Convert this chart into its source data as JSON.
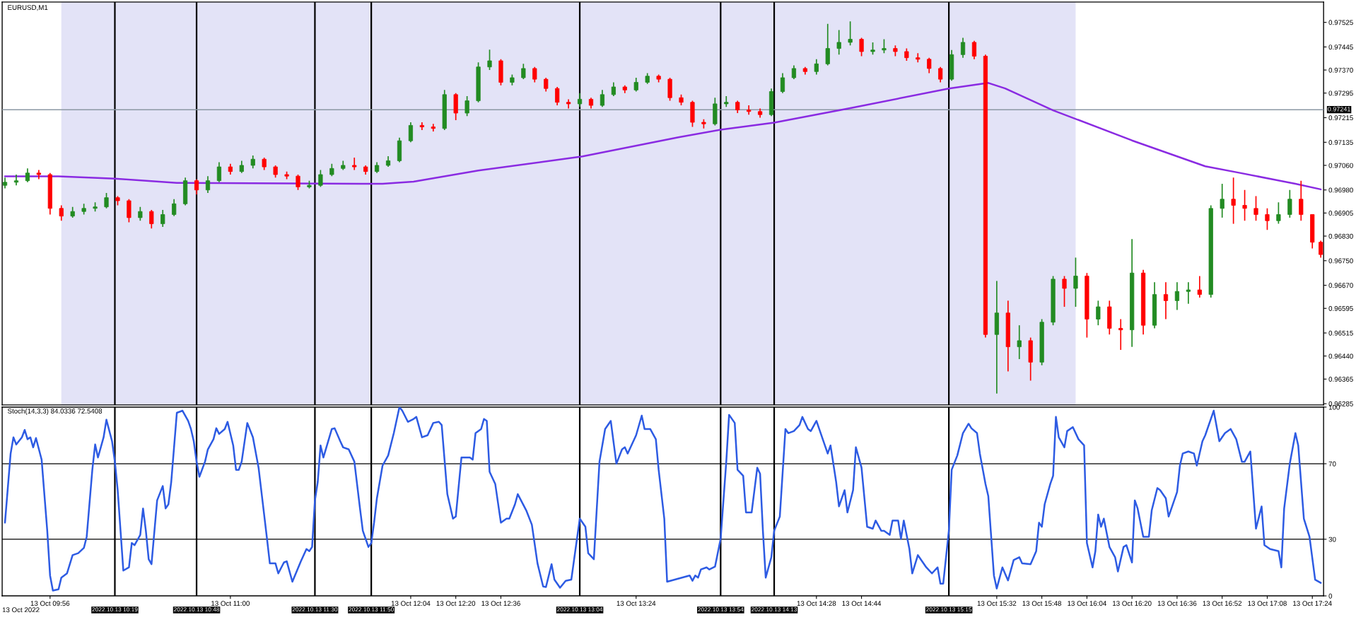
{
  "chart_data": [
    {
      "type": "candlestick",
      "title": "EURUSD,M1",
      "x": [
        "2022-10-13T09:40",
        "2022-10-13T09:44",
        "2022-10-13T09:48",
        "2022-10-13T09:52",
        "2022-10-13T09:56",
        "2022-10-13T10:00",
        "2022-10-13T10:04",
        "2022-10-13T10:08",
        "2022-10-13T10:12",
        "2022-10-13T10:16",
        "2022-10-13T10:20",
        "2022-10-13T10:24",
        "2022-10-13T10:28",
        "2022-10-13T10:32",
        "2022-10-13T10:36",
        "2022-10-13T10:40",
        "2022-10-13T10:44",
        "2022-10-13T10:48",
        "2022-10-13T10:52",
        "2022-10-13T10:56",
        "2022-10-13T11:00",
        "2022-10-13T11:04",
        "2022-10-13T11:08",
        "2022-10-13T11:12",
        "2022-10-13T11:16",
        "2022-10-13T11:20",
        "2022-10-13T11:24",
        "2022-10-13T11:28",
        "2022-10-13T11:32",
        "2022-10-13T11:36",
        "2022-10-13T11:40",
        "2022-10-13T11:44",
        "2022-10-13T11:48",
        "2022-10-13T11:52",
        "2022-10-13T11:56",
        "2022-10-13T12:00",
        "2022-10-13T12:04",
        "2022-10-13T12:08",
        "2022-10-13T12:12",
        "2022-10-13T12:16",
        "2022-10-13T12:20",
        "2022-10-13T12:24",
        "2022-10-13T12:28",
        "2022-10-13T12:32",
        "2022-10-13T12:36",
        "2022-10-13T12:40",
        "2022-10-13T12:44",
        "2022-10-13T12:48",
        "2022-10-13T12:52",
        "2022-10-13T12:56",
        "2022-10-13T13:00",
        "2022-10-13T13:04",
        "2022-10-13T13:08",
        "2022-10-13T13:12",
        "2022-10-13T13:16",
        "2022-10-13T13:20",
        "2022-10-13T13:24",
        "2022-10-13T13:28",
        "2022-10-13T13:32",
        "2022-10-13T13:36",
        "2022-10-13T13:40",
        "2022-10-13T13:44",
        "2022-10-13T13:48",
        "2022-10-13T13:52",
        "2022-10-13T13:56",
        "2022-10-13T14:00",
        "2022-10-13T14:04",
        "2022-10-13T14:08",
        "2022-10-13T14:12",
        "2022-10-13T14:16",
        "2022-10-13T14:20",
        "2022-10-13T14:24",
        "2022-10-13T14:28",
        "2022-10-13T14:32",
        "2022-10-13T14:36",
        "2022-10-13T14:40",
        "2022-10-13T14:44",
        "2022-10-13T14:48",
        "2022-10-13T14:52",
        "2022-10-13T14:56",
        "2022-10-13T15:00",
        "2022-10-13T15:04",
        "2022-10-13T15:08",
        "2022-10-13T15:12",
        "2022-10-13T15:16",
        "2022-10-13T15:20",
        "2022-10-13T15:24",
        "2022-10-13T15:28",
        "2022-10-13T15:32",
        "2022-10-13T15:36",
        "2022-10-13T15:40",
        "2022-10-13T15:44",
        "2022-10-13T15:48",
        "2022-10-13T15:52",
        "2022-10-13T15:56",
        "2022-10-13T16:00",
        "2022-10-13T16:04",
        "2022-10-13T16:08",
        "2022-10-13T16:12",
        "2022-10-13T16:16",
        "2022-10-13T16:20",
        "2022-10-13T16:24",
        "2022-10-13T16:28",
        "2022-10-13T16:32",
        "2022-10-13T16:36",
        "2022-10-13T16:40",
        "2022-10-13T16:44",
        "2022-10-13T16:48",
        "2022-10-13T16:52",
        "2022-10-13T16:56",
        "2022-10-13T17:00",
        "2022-10-13T17:04",
        "2022-10-13T17:08",
        "2022-10-13T17:12",
        "2022-10-13T17:16",
        "2022-10-13T17:20",
        "2022-10-13T17:24",
        "2022-10-13T17:27"
      ],
      "ohlc": [
        [
          0.96995,
          0.9702,
          0.96985,
          0.97005
        ],
        [
          0.97005,
          0.9703,
          0.96995,
          0.9701
        ],
        [
          0.9701,
          0.9705,
          0.97005,
          0.97035
        ],
        [
          0.97035,
          0.97045,
          0.97015,
          0.9703
        ],
        [
          0.9703,
          0.97035,
          0.969,
          0.9692
        ],
        [
          0.9692,
          0.9693,
          0.9688,
          0.96895
        ],
        [
          0.96895,
          0.96925,
          0.9689,
          0.9691
        ],
        [
          0.9691,
          0.96935,
          0.969,
          0.9692
        ],
        [
          0.9692,
          0.9694,
          0.9691,
          0.96925
        ],
        [
          0.96925,
          0.9697,
          0.9692,
          0.96955
        ],
        [
          0.96955,
          0.9696,
          0.9693,
          0.96945
        ],
        [
          0.96945,
          0.9695,
          0.96875,
          0.9689
        ],
        [
          0.9689,
          0.96925,
          0.9688,
          0.9691
        ],
        [
          0.9691,
          0.96915,
          0.96855,
          0.9687
        ],
        [
          0.9687,
          0.96915,
          0.9686,
          0.969
        ],
        [
          0.969,
          0.9695,
          0.96895,
          0.96935
        ],
        [
          0.96935,
          0.9702,
          0.9693,
          0.9701
        ],
        [
          0.9701,
          0.97015,
          0.96965,
          0.9698
        ],
        [
          0.9698,
          0.97025,
          0.9697,
          0.9701
        ],
        [
          0.9701,
          0.9707,
          0.97005,
          0.97055
        ],
        [
          0.97055,
          0.97065,
          0.9703,
          0.9704
        ],
        [
          0.9704,
          0.97075,
          0.97035,
          0.9706
        ],
        [
          0.9706,
          0.97092,
          0.9705,
          0.9708
        ],
        [
          0.9708,
          0.97085,
          0.97045,
          0.97055
        ],
        [
          0.97055,
          0.9706,
          0.9702,
          0.9703
        ],
        [
          0.9703,
          0.9704,
          0.97015,
          0.97025
        ],
        [
          0.97025,
          0.9703,
          0.9698,
          0.9699
        ],
        [
          0.9699,
          0.9701,
          0.96985,
          0.96995
        ],
        [
          0.96995,
          0.97045,
          0.9699,
          0.9703
        ],
        [
          0.9703,
          0.97065,
          0.97025,
          0.9705
        ],
        [
          0.9705,
          0.97075,
          0.97045,
          0.9706
        ],
        [
          0.9706,
          0.97085,
          0.97045,
          0.97055
        ],
        [
          0.97055,
          0.9706,
          0.9703,
          0.9704
        ],
        [
          0.9704,
          0.9707,
          0.97035,
          0.9706
        ],
        [
          0.9706,
          0.9709,
          0.97055,
          0.97075
        ],
        [
          0.97075,
          0.9715,
          0.9707,
          0.9714
        ],
        [
          0.9714,
          0.972,
          0.97135,
          0.9719
        ],
        [
          0.9719,
          0.972,
          0.97175,
          0.97185
        ],
        [
          0.97185,
          0.97195,
          0.9717,
          0.9718
        ],
        [
          0.9718,
          0.97305,
          0.97175,
          0.9729
        ],
        [
          0.9729,
          0.97295,
          0.97207,
          0.9723
        ],
        [
          0.9723,
          0.97285,
          0.9722,
          0.9727
        ],
        [
          0.9727,
          0.97395,
          0.97265,
          0.9738
        ],
        [
          0.9738,
          0.97436,
          0.9737,
          0.974
        ],
        [
          0.974,
          0.97405,
          0.9732,
          0.9733
        ],
        [
          0.9733,
          0.97355,
          0.9732,
          0.97345
        ],
        [
          0.97345,
          0.9739,
          0.9734,
          0.97375
        ],
        [
          0.97375,
          0.9738,
          0.9733,
          0.9734
        ],
        [
          0.9734,
          0.97345,
          0.973,
          0.9731
        ],
        [
          0.9731,
          0.97315,
          0.97255,
          0.97265
        ],
        [
          0.97265,
          0.97275,
          0.97245,
          0.9726
        ],
        [
          0.9726,
          0.97295,
          0.9725,
          0.97275
        ],
        [
          0.97275,
          0.9728,
          0.97245,
          0.97255
        ],
        [
          0.97255,
          0.97305,
          0.9725,
          0.9729
        ],
        [
          0.9729,
          0.9733,
          0.97285,
          0.97315
        ],
        [
          0.97315,
          0.9732,
          0.97295,
          0.97305
        ],
        [
          0.97305,
          0.97345,
          0.973,
          0.9733
        ],
        [
          0.9733,
          0.9736,
          0.97325,
          0.9735
        ],
        [
          0.9735,
          0.97355,
          0.9733,
          0.9734
        ],
        [
          0.9734,
          0.97345,
          0.9727,
          0.9728
        ],
        [
          0.9728,
          0.9729,
          0.97255,
          0.97265
        ],
        [
          0.97265,
          0.9727,
          0.97185,
          0.972
        ],
        [
          0.972,
          0.9721,
          0.9718,
          0.97195
        ],
        [
          0.97195,
          0.9728,
          0.9719,
          0.9726
        ],
        [
          0.9726,
          0.97285,
          0.9725,
          0.97265
        ],
        [
          0.97265,
          0.9727,
          0.9723,
          0.9724
        ],
        [
          0.9724,
          0.97255,
          0.97225,
          0.97235
        ],
        [
          0.97235,
          0.97245,
          0.97215,
          0.97225
        ],
        [
          0.97225,
          0.9731,
          0.9722,
          0.973
        ],
        [
          0.973,
          0.9736,
          0.97295,
          0.97345
        ],
        [
          0.97345,
          0.97385,
          0.9734,
          0.97375
        ],
        [
          0.97375,
          0.9738,
          0.97355,
          0.97365
        ],
        [
          0.97365,
          0.97405,
          0.97355,
          0.9739
        ],
        [
          0.9739,
          0.9752,
          0.97385,
          0.9744
        ],
        [
          0.9744,
          0.975,
          0.9742,
          0.9746
        ],
        [
          0.9746,
          0.97528,
          0.9745,
          0.9747
        ],
        [
          0.9747,
          0.97475,
          0.97415,
          0.9743
        ],
        [
          0.9743,
          0.9746,
          0.9742,
          0.97435
        ],
        [
          0.97435,
          0.9747,
          0.97425,
          0.9744
        ],
        [
          0.9744,
          0.9745,
          0.97415,
          0.9743
        ],
        [
          0.9743,
          0.9744,
          0.974,
          0.9741
        ],
        [
          0.9741,
          0.97425,
          0.97395,
          0.97405
        ],
        [
          0.97405,
          0.9741,
          0.9736,
          0.97375
        ],
        [
          0.97375,
          0.9738,
          0.9733,
          0.9734
        ],
        [
          0.9734,
          0.97435,
          0.97335,
          0.9742
        ],
        [
          0.9742,
          0.97475,
          0.9741,
          0.9746
        ],
        [
          0.9746,
          0.97465,
          0.97405,
          0.97415
        ],
        [
          0.97415,
          0.9742,
          0.965,
          0.9651
        ],
        [
          0.9651,
          0.96684,
          0.96318,
          0.9658
        ],
        [
          0.9658,
          0.9662,
          0.9639,
          0.9647
        ],
        [
          0.9647,
          0.9654,
          0.9643,
          0.9649
        ],
        [
          0.9649,
          0.965,
          0.9636,
          0.9642
        ],
        [
          0.9642,
          0.9656,
          0.9641,
          0.9655
        ],
        [
          0.9655,
          0.967,
          0.9654,
          0.9669
        ],
        [
          0.9669,
          0.967,
          0.966,
          0.9666
        ],
        [
          0.9666,
          0.9676,
          0.966,
          0.967
        ],
        [
          0.967,
          0.9671,
          0.965,
          0.9656
        ],
        [
          0.9656,
          0.9662,
          0.9654,
          0.966
        ],
        [
          0.966,
          0.9662,
          0.9651,
          0.9653
        ],
        [
          0.9653,
          0.9656,
          0.9646,
          0.96525
        ],
        [
          0.96525,
          0.9682,
          0.9647,
          0.9671
        ],
        [
          0.9671,
          0.9672,
          0.9651,
          0.9654
        ],
        [
          0.9654,
          0.9668,
          0.9653,
          0.9664
        ],
        [
          0.9664,
          0.9668,
          0.9656,
          0.9662
        ],
        [
          0.9662,
          0.9668,
          0.9659,
          0.9665
        ],
        [
          0.9665,
          0.9668,
          0.9661,
          0.96655
        ],
        [
          0.96655,
          0.967,
          0.9663,
          0.9664
        ],
        [
          0.9664,
          0.9693,
          0.9663,
          0.9692
        ],
        [
          0.9692,
          0.97,
          0.9689,
          0.9695
        ],
        [
          0.9695,
          0.9702,
          0.9687,
          0.9693
        ],
        [
          0.9693,
          0.9698,
          0.9688,
          0.9692
        ],
        [
          0.9692,
          0.9696,
          0.9688,
          0.969
        ],
        [
          0.969,
          0.9692,
          0.9685,
          0.9688
        ],
        [
          0.9688,
          0.9694,
          0.9687,
          0.969
        ],
        [
          0.969,
          0.9698,
          0.9689,
          0.9695
        ],
        [
          0.9695,
          0.9701,
          0.9688,
          0.969
        ],
        [
          0.969,
          0.969,
          0.9679,
          0.9681
        ],
        [
          0.9681,
          0.96815,
          0.9676,
          0.9677
        ]
      ],
      "colors": [
        "#228b22",
        "#228b22",
        "#228b22",
        "#ff0000",
        "#ff0000",
        "#ff0000",
        "#228b22",
        "#228b22",
        "#228b22",
        "#228b22",
        "#ff0000",
        "#ff0000",
        "#228b22",
        "#ff0000",
        "#228b22",
        "#228b22",
        "#228b22",
        "#ff0000",
        "#228b22",
        "#228b22",
        "#ff0000",
        "#228b22",
        "#228b22",
        "#ff0000",
        "#ff0000",
        "#ff0000",
        "#ff0000",
        "#228b22",
        "#228b22",
        "#228b22",
        "#228b22",
        "#ff0000",
        "#ff0000",
        "#228b22",
        "#228b22",
        "#228b22",
        "#228b22",
        "#ff0000",
        "#ff0000",
        "#228b22",
        "#ff0000",
        "#228b22",
        "#228b22",
        "#228b22",
        "#ff0000",
        "#228b22",
        "#228b22",
        "#ff0000",
        "#ff0000",
        "#ff0000",
        "#ff0000",
        "#228b22",
        "#ff0000",
        "#228b22",
        "#228b22",
        "#ff0000",
        "#228b22",
        "#228b22",
        "#ff0000",
        "#ff0000",
        "#ff0000",
        "#ff0000",
        "#ff0000",
        "#228b22",
        "#228b22",
        "#ff0000",
        "#ff0000",
        "#ff0000",
        "#228b22",
        "#228b22",
        "#228b22",
        "#ff0000",
        "#228b22",
        "#228b22",
        "#228b22",
        "#228b22",
        "#ff0000",
        "#228b22",
        "#228b22",
        "#ff0000",
        "#ff0000",
        "#ff0000",
        "#ff0000",
        "#ff0000",
        "#228b22",
        "#228b22",
        "#ff0000",
        "#ff0000",
        "#228b22",
        "#ff0000",
        "#228b22",
        "#ff0000",
        "#228b22",
        "#228b22",
        "#ff0000",
        "#228b22",
        "#ff0000",
        "#228b22",
        "#ff0000",
        "#ff0000",
        "#228b22",
        "#ff0000",
        "#228b22",
        "#ff0000",
        "#228b22",
        "#228b22",
        "#ff0000",
        "#228b22",
        "#228b22",
        "#ff0000",
        "#ff0000",
        "#ff0000",
        "#ff0000",
        "#228b22",
        "#228b22",
        "#ff0000",
        "#ff0000",
        "#ff0000"
      ],
      "series": [
        {
          "type": "line",
          "color": "#8a2be2",
          "x": [
            "2022-10-13T09:40",
            "2022-10-13T09:59",
            "2022-10-13T10:19",
            "2022-10-13T10:41",
            "2022-10-13T11:54",
            "2022-10-13T12:05",
            "2022-10-13T12:28",
            "2022-10-13T13:05",
            "2022-10-13T13:39",
            "2022-10-13T13:54",
            "2022-10-13T14:13",
            "2022-10-13T14:40",
            "2022-10-13T15:15",
            "2022-10-13T15:29",
            "2022-10-13T15:35",
            "2022-10-13T15:52",
            "2022-10-13T16:20",
            "2022-10-13T16:46",
            "2022-10-13T16:58",
            "2022-10-13T17:18",
            "2022-10-13T17:27"
          ],
          "values": [
            0.97024,
            0.97024,
            0.97017,
            0.97003,
            0.97,
            0.97007,
            0.97043,
            0.97089,
            0.97151,
            0.97176,
            0.97199,
            0.97246,
            0.9731,
            0.97328,
            0.9731,
            0.97239,
            0.97141,
            0.97057,
            0.97036,
            0.97,
            0.96982
          ]
        }
      ],
      "xlim": [
        "2022-10-13T09:39",
        "2022-10-13T17:28"
      ],
      "ylim": [
        0.96281,
        0.97591
      ],
      "yticks": [
        0.97525,
        0.97445,
        {
          "value": 0.9737,
          "label": "0.97370"
        },
        0.97295,
        0.97215,
        0.97135,
        {
          "value": 0.9706,
          "label": "0.97060"
        },
        {
          "value": 0.9698,
          "label": "0.96980"
        },
        0.96905,
        {
          "value": 0.9683,
          "label": "0.96830"
        },
        {
          "value": 0.9675,
          "label": "0.96750"
        },
        {
          "value": 0.9667,
          "label": "0.96670"
        },
        0.96595,
        0.96515,
        {
          "value": 0.9644,
          "label": "0.96440"
        },
        0.96365,
        0.96285
      ],
      "tick_labels": "y",
      "bands": [
        {
          "axis": "x",
          "from": "2022-10-13T10:00",
          "to": "2022-10-13T16:00",
          "color": "#e3e3f7"
        }
      ],
      "ref_lines": [
        {
          "axis": "x",
          "value": "2022-10-13T10:19",
          "color": "#000000"
        },
        {
          "axis": "x",
          "value": "2022-10-13T10:48",
          "color": "#000000"
        },
        {
          "axis": "x",
          "value": "2022-10-13T11:30",
          "color": "#000000"
        },
        {
          "axis": "x",
          "value": "2022-10-13T11:50",
          "color": "#000000"
        },
        {
          "axis": "x",
          "value": "2022-10-13T13:04",
          "color": "#000000"
        },
        {
          "axis": "x",
          "value": "2022-10-13T13:54",
          "color": "#000000"
        },
        {
          "axis": "x",
          "value": "2022-10-13T14:13",
          "color": "#000000"
        },
        {
          "axis": "x",
          "value": "2022-10-13T15:15",
          "color": "#000000"
        },
        {
          "axis": "y",
          "value": 0.97241,
          "label": "0.97241",
          "color": "#8c98a4"
        }
      ]
    },
    {
      "type": "line",
      "title": "Stoch(14,3,3) 84.0336 72.5408",
      "series": [
        {
          "color": "#2d5be3",
          "x": [
            "2022-10-13T09:40",
            "2022-10-13T09:42",
            "2022-10-13T09:43",
            "2022-10-13T09:44",
            "2022-10-13T09:46",
            "2022-10-13T09:47",
            "2022-10-13T09:48",
            "2022-10-13T09:49",
            "2022-10-13T09:50",
            "2022-10-13T09:51",
            "2022-10-13T09:53",
            "2022-10-13T09:55",
            "2022-10-13T09:56",
            "2022-10-13T09:57",
            "2022-10-13T09:59",
            "2022-10-13T10:00",
            "2022-10-13T10:02",
            "2022-10-13T10:04",
            "2022-10-13T10:06",
            "2022-10-13T10:08",
            "2022-10-13T10:09",
            "2022-10-13T10:11",
            "2022-10-13T10:12",
            "2022-10-13T10:13",
            "2022-10-13T10:15",
            "2022-10-13T10:16",
            "2022-10-13T10:18",
            "2022-10-13T10:19",
            "2022-10-13T10:20",
            "2022-10-13T10:22",
            "2022-10-13T10:24",
            "2022-10-13T10:25",
            "2022-10-13T10:26",
            "2022-10-13T10:28",
            "2022-10-13T10:29",
            "2022-10-13T10:30",
            "2022-10-13T10:31",
            "2022-10-13T10:32",
            "2022-10-13T10:34",
            "2022-10-13T10:36",
            "2022-10-13T10:37",
            "2022-10-13T10:38",
            "2022-10-13T10:39",
            "2022-10-13T10:41",
            "2022-10-13T10:43",
            "2022-10-13T10:45",
            "2022-10-13T10:46",
            "2022-10-13T10:47",
            "2022-10-13T10:48",
            "2022-10-13T10:49",
            "2022-10-13T10:51",
            "2022-10-13T10:52",
            "2022-10-13T10:54",
            "2022-10-13T10:55",
            "2022-10-13T10:56",
            "2022-10-13T10:58",
            "2022-10-13T10:59",
            "2022-10-13T11:01",
            "2022-10-13T11:02",
            "2022-10-13T11:03",
            "2022-10-13T11:04",
            "2022-10-13T11:06",
            "2022-10-13T11:08",
            "2022-10-13T11:10",
            "2022-10-13T11:13",
            "2022-10-13T11:14",
            "2022-10-13T11:16",
            "2022-10-13T11:17",
            "2022-10-13T11:19",
            "2022-10-13T11:20",
            "2022-10-13T11:22",
            "2022-10-13T11:25",
            "2022-10-13T11:27",
            "2022-10-13T11:28",
            "2022-10-13T11:29",
            "2022-10-13T11:30",
            "2022-10-13T11:31",
            "2022-10-13T11:32",
            "2022-10-13T11:33",
            "2022-10-13T11:36",
            "2022-10-13T11:37",
            "2022-10-13T11:39",
            "2022-10-13T11:40",
            "2022-10-13T11:42",
            "2022-10-13T11:44",
            "2022-10-13T11:46",
            "2022-10-13T11:47",
            "2022-10-13T11:49",
            "2022-10-13T11:50",
            "2022-10-13T11:51",
            "2022-10-13T11:52",
            "2022-10-13T11:54",
            "2022-10-13T11:56",
            "2022-10-13T11:58",
            "2022-10-13T12:00",
            "2022-10-13T12:01",
            "2022-10-13T12:03",
            "2022-10-13T12:05",
            "2022-10-13T12:06",
            "2022-10-13T12:08",
            "2022-10-13T12:10",
            "2022-10-13T12:12",
            "2022-10-13T12:14",
            "2022-10-13T12:15",
            "2022-10-13T12:17",
            "2022-10-13T12:19",
            "2022-10-13T12:20",
            "2022-10-13T12:22",
            "2022-10-13T12:25",
            "2022-10-13T12:26",
            "2022-10-13T12:27",
            "2022-10-13T12:29",
            "2022-10-13T12:30",
            "2022-10-13T12:31",
            "2022-10-13T12:32",
            "2022-10-13T12:34",
            "2022-10-13T12:36",
            "2022-10-13T12:38",
            "2022-10-13T12:39",
            "2022-10-13T12:41",
            "2022-10-13T12:42",
            "2022-10-13T12:45",
            "2022-10-13T12:47",
            "2022-10-13T12:49",
            "2022-10-13T12:51",
            "2022-10-13T12:52",
            "2022-10-13T12:54",
            "2022-10-13T12:55",
            "2022-10-13T12:57",
            "2022-10-13T12:59",
            "2022-10-13T13:01",
            "2022-10-13T13:04",
            "2022-10-13T13:06",
            "2022-10-13T13:07",
            "2022-10-13T13:09",
            "2022-10-13T13:11",
            "2022-10-13T13:13",
            "2022-10-13T13:15",
            "2022-10-13T13:17",
            "2022-10-13T13:19",
            "2022-10-13T13:20",
            "2022-10-13T13:21",
            "2022-10-13T13:24",
            "2022-10-13T13:26",
            "2022-10-13T13:27",
            "2022-10-13T13:29",
            "2022-10-13T13:31",
            "2022-10-13T13:32",
            "2022-10-13T13:34",
            "2022-10-13T13:35",
            "2022-10-13T13:43",
            "2022-10-13T13:44",
            "2022-10-13T13:45",
            "2022-10-13T13:46",
            "2022-10-13T13:47",
            "2022-10-13T13:49",
            "2022-10-13T13:50",
            "2022-10-13T13:52",
            "2022-10-13T13:54",
            "2022-10-13T13:56",
            "2022-10-13T13:57",
            "2022-10-13T13:59",
            "2022-10-13T14:00",
            "2022-10-13T14:02",
            "2022-10-13T14:03",
            "2022-10-13T14:05",
            "2022-10-13T14:07",
            "2022-10-13T14:08",
            "2022-10-13T14:09",
            "2022-10-13T14:10",
            "2022-10-13T14:12",
            "2022-10-13T14:13",
            "2022-10-13T14:15",
            "2022-10-13T14:17",
            "2022-10-13T14:18",
            "2022-10-13T14:20",
            "2022-10-13T14:22",
            "2022-10-13T14:23",
            "2022-10-13T14:25",
            "2022-10-13T14:26",
            "2022-10-13T14:28",
            "2022-10-13T14:30",
            "2022-10-13T14:32",
            "2022-10-13T14:33",
            "2022-10-13T14:35",
            "2022-10-13T14:36",
            "2022-10-13T14:38",
            "2022-10-13T14:39",
            "2022-10-13T14:41",
            "2022-10-13T14:42",
            "2022-10-13T14:44",
            "2022-10-13T14:46",
            "2022-10-13T14:48",
            "2022-10-13T14:49",
            "2022-10-13T14:51",
            "2022-10-13T14:52",
            "2022-10-13T14:54",
            "2022-10-13T14:55",
            "2022-10-13T14:57",
            "2022-10-13T14:58",
            "2022-10-13T14:59",
            "2022-10-13T15:01",
            "2022-10-13T15:02",
            "2022-10-13T15:04",
            "2022-10-13T15:05",
            "2022-10-13T15:07",
            "2022-10-13T15:09",
            "2022-10-13T15:11",
            "2022-10-13T15:12",
            "2022-10-13T15:13",
            "2022-10-13T15:15",
            "2022-10-13T15:16",
            "2022-10-13T15:18",
            "2022-10-13T15:20",
            "2022-10-13T15:22",
            "2022-10-13T15:23",
            "2022-10-13T15:25",
            "2022-10-13T15:26",
            "2022-10-13T15:28",
            "2022-10-13T15:29",
            "2022-10-13T15:31",
            "2022-10-13T15:32",
            "2022-10-13T15:34",
            "2022-10-13T15:36",
            "2022-10-13T15:38",
            "2022-10-13T15:40",
            "2022-10-13T15:41",
            "2022-10-13T15:44",
            "2022-10-13T15:46",
            "2022-10-13T15:47",
            "2022-10-13T15:48",
            "2022-10-13T15:49",
            "2022-10-13T15:51",
            "2022-10-13T15:52",
            "2022-10-13T15:53",
            "2022-10-13T15:54",
            "2022-10-13T15:56",
            "2022-10-13T15:57",
            "2022-10-13T15:59",
            "2022-10-13T16:01",
            "2022-10-13T16:03",
            "2022-10-13T16:04",
            "2022-10-13T16:06",
            "2022-10-13T16:07",
            "2022-10-13T16:08",
            "2022-10-13T16:09",
            "2022-10-13T16:10",
            "2022-10-13T16:12",
            "2022-10-13T16:14",
            "2022-10-13T16:15",
            "2022-10-13T16:17",
            "2022-10-13T16:18",
            "2022-10-13T16:20",
            "2022-10-13T16:21",
            "2022-10-13T16:22",
            "2022-10-13T16:24",
            "2022-10-13T16:26",
            "2022-10-13T16:27",
            "2022-10-13T16:29",
            "2022-10-13T16:30",
            "2022-10-13T16:32",
            "2022-10-13T16:33",
            "2022-10-13T16:36",
            "2022-10-13T16:37",
            "2022-10-13T16:38",
            "2022-10-13T16:40",
            "2022-10-13T16:42",
            "2022-10-13T16:43",
            "2022-10-13T16:45",
            "2022-10-13T16:46",
            "2022-10-13T16:49",
            "2022-10-13T16:51",
            "2022-10-13T16:53",
            "2022-10-13T16:55",
            "2022-10-13T16:57",
            "2022-10-13T16:59",
            "2022-10-13T17:00",
            "2022-10-13T17:02",
            "2022-10-13T17:04",
            "2022-10-13T17:06",
            "2022-10-13T17:07",
            "2022-10-13T17:09",
            "2022-10-13T17:12",
            "2022-10-13T17:13",
            "2022-10-13T17:14",
            "2022-10-13T17:16",
            "2022-10-13T17:18",
            "2022-10-13T17:19",
            "2022-10-13T17:21",
            "2022-10-13T17:23",
            "2022-10-13T17:25",
            "2022-10-13T17:27"
          ],
          "values": [
            38.8,
            75.4,
            84.0,
            80.2,
            84.0,
            87.9,
            83.0,
            84.0,
            78.7,
            83.6,
            72.2,
            34.5,
            10.8,
            2.8,
            3.5,
            9.7,
            11.9,
            21.6,
            22.6,
            25.4,
            31.3,
            66.8,
            80.2,
            73.3,
            84.0,
            93.3,
            81.9,
            71.1,
            56.0,
            13.4,
            15.1,
            28.0,
            26.9,
            32.3,
            46.3,
            34.5,
            19.4,
            16.8,
            50.6,
            58.2,
            46.3,
            48.5,
            60.3,
            97.0,
            98.1,
            92.7,
            88.4,
            81.9,
            71.1,
            63.1,
            71.1,
            77.6,
            83.0,
            88.8,
            85.8,
            88.4,
            92.2,
            79.7,
            66.8,
            66.8,
            71.1,
            91.6,
            84.0,
            67.9,
            30.2,
            17.2,
            17.2,
            11.9,
            17.7,
            18.3,
            7.5,
            18.3,
            24.8,
            23.7,
            25.9,
            50.6,
            60.3,
            79.7,
            73.3,
            88.4,
            88.8,
            81.9,
            78.7,
            77.6,
            71.1,
            46.3,
            34.5,
            25.9,
            28.0,
            38.8,
            51.7,
            69.0,
            74.4,
            86.2,
            100,
            98.1,
            92.2,
            93.7,
            94.8,
            84.0,
            85.1,
            91.6,
            92.2,
            90.5,
            53.9,
            40.9,
            42.0,
            73.3,
            73.3,
            72.2,
            86.2,
            88.4,
            93.7,
            92.7,
            65.7,
            59.3,
            38.8,
            40.9,
            40.9,
            48.5,
            53.9,
            45.3,
            37.7,
            17.2,
            5.0,
            4.7,
            16.8,
            8.6,
            4.3,
            8.0,
            8.6,
            40.9,
            36.6,
            22.6,
            19.4,
            71.1,
            88.4,
            92.7,
            70.0,
            77.6,
            78.7,
            75.4,
            85.1,
            95.5,
            88.4,
            88.4,
            83.0,
            66.8,
            40.9,
            7.5,
            10.8,
            8.0,
            10.8,
            9.7,
            14.0,
            15.1,
            14.0,
            15.5,
            30.2,
            71.1,
            95.9,
            91.6,
            66.8,
            63.6,
            44.2,
            44.2,
            67.9,
            64.7,
            34.5,
            9.7,
            20.5,
            34.5,
            42.0,
            88.4,
            86.2,
            87.3,
            90.5,
            94.8,
            88.4,
            87.3,
            92.7,
            84.0,
            75.4,
            79.7,
            60.3,
            47.4,
            56.0,
            44.2,
            56.0,
            78.7,
            67.9,
            36.6,
            35.6,
            39.9,
            34.5,
            34.5,
            32.3,
            39.9,
            39.9,
            30.2,
            39.9,
            24.8,
            11.9,
            21.6,
            19.4,
            15.1,
            11.9,
            15.1,
            6.5,
            6.5,
            34.5,
            66.8,
            74.4,
            86.2,
            91.2,
            88.8,
            86.2,
            75.4,
            59.3,
            52.8,
            10.8,
            3.9,
            15.1,
            8.2,
            19.0,
            20.5,
            17.2,
            16.8,
            23.7,
            38.8,
            36.6,
            48.5,
            59.3,
            63.6,
            94.8,
            84.0,
            78.7,
            87.3,
            89.4,
            83.0,
            79.7,
            28.0,
            15.1,
            23.7,
            43.1,
            36.6,
            40.9,
            25.9,
            20.5,
            12.9,
            25.9,
            26.9,
            17.7,
            50.6,
            46.3,
            31.3,
            31.3,
            45.3,
            57.1,
            56.0,
            51.7,
            42.0,
            55.0,
            69.0,
            75.4,
            76.5,
            75.4,
            69.0,
            81.9,
            85.1,
            98.1,
            81.9,
            86.2,
            88.4,
            83.0,
            71.1,
            71.1,
            76.5,
            35.6,
            47.4,
            26.9,
            24.8,
            23.7,
            15.1,
            46.3,
            70.0,
            86.2,
            79.7,
            40.9,
            31.3,
            8.6,
            6.9
          ]
        }
      ],
      "xlim": [
        "2022-10-13T09:39",
        "2022-10-13T17:28"
      ],
      "ylim": [
        0,
        100
      ],
      "xticks": [
        {
          "value": "2022-10-13T09:56",
          "label": "13 Oct 09:56"
        },
        {
          "value": "2022-10-13T11:00",
          "label": "13 Oct 11:00"
        },
        {
          "value": "2022-10-13T12:04",
          "label": "13 Oct 12:04"
        },
        {
          "value": "2022-10-13T12:20",
          "label": "13 Oct 12:20"
        },
        {
          "value": "2022-10-13T12:36",
          "label": "13 Oct 12:36"
        },
        {
          "value": "2022-10-13T13:24",
          "label": "13 Oct 13:24"
        },
        {
          "value": "2022-10-13T14:28",
          "label": "13 Oct 14:28"
        },
        {
          "value": "2022-10-13T14:44",
          "label": "13 Oct 14:44"
        },
        {
          "value": "2022-10-13T15:32",
          "label": "13 Oct 15:32"
        },
        {
          "value": "2022-10-13T15:48",
          "label": "13 Oct 15:48"
        },
        {
          "value": "2022-10-13T16:04",
          "label": "13 Oct 16:04"
        },
        {
          "value": "2022-10-13T16:20",
          "label": "13 Oct 16:20"
        },
        {
          "value": "2022-10-13T16:36",
          "label": "13 Oct 16:36"
        },
        {
          "value": "2022-10-13T16:52",
          "label": "13 Oct 16:52"
        },
        {
          "value": "2022-10-13T17:08",
          "label": "13 Oct 17:08"
        },
        {
          "value": "2022-10-13T17:24",
          "label": "13 Oct 17:24"
        }
      ],
      "yticks": [
        100,
        70,
        30,
        0
      ],
      "annotations": [
        "13 Oct 2022"
      ],
      "ref_lines": [
        {
          "axis": "x",
          "value": "2022-10-13T10:19",
          "label": "2022.10.13 10:19",
          "color": "#000000"
        },
        {
          "axis": "x",
          "value": "2022-10-13T10:48",
          "label": "2022.10.13 10:48",
          "color": "#000000"
        },
        {
          "axis": "x",
          "value": "2022-10-13T11:30",
          "label": "2022.10.13 11:30",
          "color": "#000000"
        },
        {
          "axis": "x",
          "value": "2022-10-13T11:50",
          "label": "2022.10.13 11:50",
          "color": "#000000"
        },
        {
          "axis": "x",
          "value": "2022-10-13T13:04",
          "label": "2022.10.13 13:04",
          "color": "#000000"
        },
        {
          "axis": "x",
          "value": "2022-10-13T13:54",
          "label": "2022.10.13 13:54",
          "color": "#000000"
        },
        {
          "axis": "x",
          "value": "2022-10-13T14:13",
          "label": "2022.10.13 14:13",
          "color": "#000000"
        },
        {
          "axis": "x",
          "value": "2022-10-13T15:15",
          "label": "2022.10.13 15:15",
          "color": "#000000"
        },
        {
          "axis": "y",
          "value": 70,
          "color": "#000000"
        },
        {
          "axis": "y",
          "value": 30,
          "color": "#000000"
        }
      ]
    }
  ]
}
